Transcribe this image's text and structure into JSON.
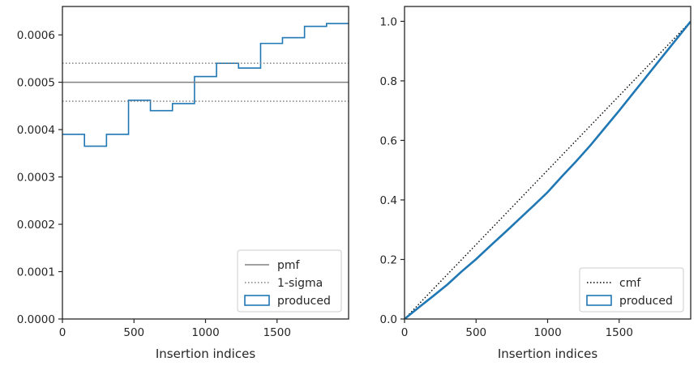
{
  "chart_data": [
    {
      "type": "step",
      "xlabel": "Insertion indices",
      "ylabel": "",
      "xlim": [
        0,
        2000
      ],
      "ylim": [
        0,
        0.00066
      ],
      "xticks": [
        0,
        500,
        1000,
        1500
      ],
      "xtick_labels": [
        "0",
        "500",
        "1000",
        "1500"
      ],
      "yticks": [
        0,
        0.0001,
        0.0002,
        0.0003,
        0.0004,
        0.0005,
        0.0006
      ],
      "ytick_labels": [
        "0.0000",
        "0.0001",
        "0.0002",
        "0.0003",
        "0.0004",
        "0.0005",
        "0.0006"
      ],
      "bin_edges": [
        0,
        154,
        308,
        462,
        615,
        769,
        923,
        1077,
        1231,
        1385,
        1538,
        1692,
        1846,
        2000
      ],
      "series": [
        {
          "name": "produced",
          "kind": "step-histogram",
          "color": "#1f77b4",
          "values": [
            0.00039,
            0.000365,
            0.00039,
            0.000462,
            0.00044,
            0.000455,
            0.000512,
            0.00054,
            0.00053,
            0.000582,
            0.000594,
            0.000618,
            0.000624
          ]
        },
        {
          "name": "pmf",
          "kind": "hline",
          "color": "#808080",
          "value": 0.0005
        },
        {
          "name": "1-sigma",
          "kind": "hline-dotted",
          "color": "#808080",
          "values": [
            0.00054,
            0.00046
          ]
        }
      ],
      "legend": {
        "position": "bottom-right",
        "entries": [
          "pmf",
          "1-sigma",
          "produced"
        ]
      },
      "grid": false
    },
    {
      "type": "line",
      "xlabel": "Insertion indices",
      "ylabel": "",
      "xlim": [
        0,
        2000
      ],
      "ylim": [
        0,
        1.05
      ],
      "xticks": [
        0,
        500,
        1000,
        1500
      ],
      "xtick_labels": [
        "0",
        "500",
        "1000",
        "1500"
      ],
      "yticks": [
        0.0,
        0.2,
        0.4,
        0.6,
        0.8,
        1.0
      ],
      "ytick_labels": [
        "0.0",
        "0.2",
        "0.4",
        "0.6",
        "0.8",
        "1.0"
      ],
      "series": [
        {
          "name": "cmf",
          "kind": "dotted-line",
          "color": "#000000",
          "x": [
            0,
            2000
          ],
          "y": [
            0,
            1.0
          ]
        },
        {
          "name": "produced",
          "kind": "cumulative",
          "color": "#1f77b4",
          "x": [
            0,
            100,
            200,
            300,
            400,
            500,
            600,
            700,
            800,
            900,
            1000,
            1100,
            1200,
            1300,
            1400,
            1500,
            1600,
            1700,
            1800,
            1900,
            2000
          ],
          "y": [
            0,
            0.039,
            0.077,
            0.116,
            0.16,
            0.201,
            0.246,
            0.29,
            0.335,
            0.38,
            0.426,
            0.479,
            0.53,
            0.584,
            0.642,
            0.7,
            0.76,
            0.82,
            0.88,
            0.94,
            1.0
          ]
        }
      ],
      "legend": {
        "position": "bottom-right",
        "entries": [
          "cmf",
          "produced"
        ]
      },
      "grid": false
    }
  ]
}
